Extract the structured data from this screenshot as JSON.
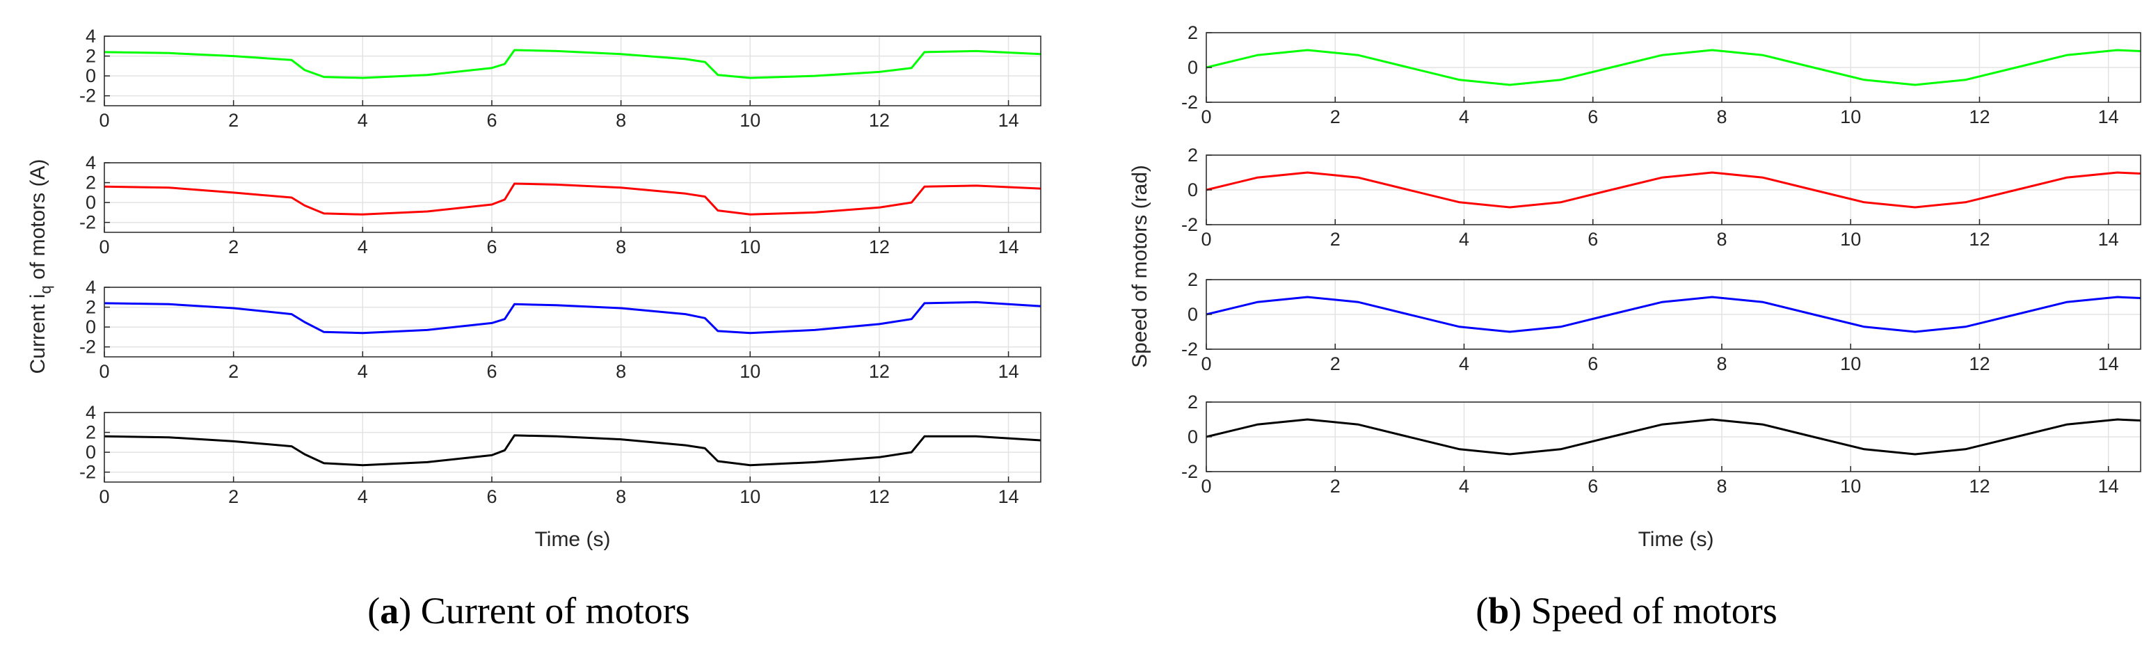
{
  "chart_data": [
    {
      "type": "line",
      "panel_label": "a",
      "caption": "Current of motors",
      "xlabel": "Time (s)",
      "ylabel": "Current i",
      "ylabel_sub": "q",
      "ylabel_tail": " of motors (A)",
      "xlim": [
        0,
        14.5
      ],
      "xticks": [
        0,
        2,
        4,
        6,
        8,
        10,
        12,
        14
      ],
      "ylim": [
        -3,
        4
      ],
      "yticks": [
        -2,
        0,
        2,
        4
      ],
      "grid": true,
      "series": [
        {
          "color": "#00ff00",
          "x": [
            0,
            1,
            2,
            2.9,
            3.1,
            3.4,
            4,
            5,
            6,
            6.2,
            6.35,
            7,
            8,
            9,
            9.3,
            9.5,
            10,
            11,
            12,
            12.5,
            12.7,
            13.5,
            14.5
          ],
          "y": [
            2.4,
            2.3,
            2.0,
            1.6,
            0.6,
            -0.1,
            -0.2,
            0.1,
            0.8,
            1.2,
            2.6,
            2.5,
            2.2,
            1.7,
            1.4,
            0.1,
            -0.2,
            0.0,
            0.4,
            0.8,
            2.4,
            2.5,
            2.2
          ]
        },
        {
          "color": "#ff0000",
          "x": [
            0,
            1,
            2,
            2.9,
            3.1,
            3.4,
            4,
            5,
            6,
            6.2,
            6.35,
            7,
            8,
            9,
            9.3,
            9.5,
            10,
            11,
            12,
            12.5,
            12.7,
            13.5,
            14.5
          ],
          "y": [
            1.6,
            1.5,
            1.0,
            0.5,
            -0.3,
            -1.1,
            -1.2,
            -0.9,
            -0.2,
            0.3,
            1.9,
            1.8,
            1.5,
            0.9,
            0.6,
            -0.8,
            -1.2,
            -1.0,
            -0.5,
            0.0,
            1.6,
            1.7,
            1.4
          ]
        },
        {
          "color": "#0000ff",
          "x": [
            0,
            1,
            2,
            2.9,
            3.1,
            3.4,
            4,
            5,
            6,
            6.2,
            6.35,
            7,
            8,
            9,
            9.3,
            9.5,
            10,
            11,
            12,
            12.5,
            12.7,
            13.5,
            14.5
          ],
          "y": [
            2.4,
            2.3,
            1.9,
            1.3,
            0.5,
            -0.5,
            -0.6,
            -0.3,
            0.4,
            0.8,
            2.3,
            2.2,
            1.9,
            1.3,
            0.9,
            -0.4,
            -0.6,
            -0.3,
            0.3,
            0.8,
            2.4,
            2.5,
            2.1
          ]
        },
        {
          "color": "#000000",
          "x": [
            0,
            1,
            2,
            2.9,
            3.1,
            3.4,
            4,
            5,
            6,
            6.2,
            6.35,
            7,
            8,
            9,
            9.3,
            9.5,
            10,
            11,
            12,
            12.5,
            12.7,
            13.5,
            14.5
          ],
          "y": [
            1.6,
            1.5,
            1.1,
            0.6,
            -0.2,
            -1.1,
            -1.3,
            -1.0,
            -0.3,
            0.2,
            1.7,
            1.6,
            1.3,
            0.7,
            0.4,
            -0.9,
            -1.3,
            -1.0,
            -0.5,
            0.0,
            1.6,
            1.6,
            1.2
          ]
        }
      ]
    },
    {
      "type": "line",
      "panel_label": "b",
      "caption": "Speed of motors",
      "xlabel": "Time (s)",
      "ylabel": "Speed of motors (rad)",
      "xlim": [
        0,
        14.5
      ],
      "xticks": [
        0,
        2,
        4,
        6,
        8,
        10,
        12,
        14
      ],
      "ylim": [
        -2,
        2
      ],
      "yticks": [
        -2,
        0,
        2
      ],
      "grid": true,
      "series": [
        {
          "color": "#00ff00",
          "x": [
            0,
            0.79,
            1.57,
            2.36,
            3.14,
            3.93,
            4.71,
            5.5,
            6.28,
            7.07,
            7.85,
            8.64,
            9.42,
            10.21,
            11.0,
            11.78,
            12.57,
            13.35,
            14.14,
            14.5
          ],
          "y": [
            0,
            0.71,
            1.0,
            0.71,
            0,
            -0.71,
            -1.0,
            -0.71,
            0,
            0.71,
            1.0,
            0.71,
            0,
            -0.71,
            -1.0,
            -0.71,
            0,
            0.71,
            1.0,
            0.94
          ]
        },
        {
          "color": "#ff0000",
          "x": [
            0,
            0.79,
            1.57,
            2.36,
            3.14,
            3.93,
            4.71,
            5.5,
            6.28,
            7.07,
            7.85,
            8.64,
            9.42,
            10.21,
            11.0,
            11.78,
            12.57,
            13.35,
            14.14,
            14.5
          ],
          "y": [
            0,
            0.71,
            1.0,
            0.71,
            0,
            -0.71,
            -1.0,
            -0.71,
            0,
            0.71,
            1.0,
            0.71,
            0,
            -0.71,
            -1.0,
            -0.71,
            0,
            0.71,
            1.0,
            0.94
          ]
        },
        {
          "color": "#0000ff",
          "x": [
            0,
            0.79,
            1.57,
            2.36,
            3.14,
            3.93,
            4.71,
            5.5,
            6.28,
            7.07,
            7.85,
            8.64,
            9.42,
            10.21,
            11.0,
            11.78,
            12.57,
            13.35,
            14.14,
            14.5
          ],
          "y": [
            0,
            0.71,
            1.0,
            0.71,
            0,
            -0.71,
            -1.0,
            -0.71,
            0,
            0.71,
            1.0,
            0.71,
            0,
            -0.71,
            -1.0,
            -0.71,
            0,
            0.71,
            1.0,
            0.94
          ]
        },
        {
          "color": "#000000",
          "x": [
            0,
            0.79,
            1.57,
            2.36,
            3.14,
            3.93,
            4.71,
            5.5,
            6.28,
            7.07,
            7.85,
            8.64,
            9.42,
            10.21,
            11.0,
            11.78,
            12.57,
            13.35,
            14.14,
            14.5
          ],
          "y": [
            0,
            0.71,
            1.0,
            0.71,
            0,
            -0.71,
            -1.0,
            -0.71,
            0,
            0.71,
            1.0,
            0.71,
            0,
            -0.71,
            -1.0,
            -0.71,
            0,
            0.71,
            1.0,
            0.94
          ]
        }
      ]
    }
  ]
}
